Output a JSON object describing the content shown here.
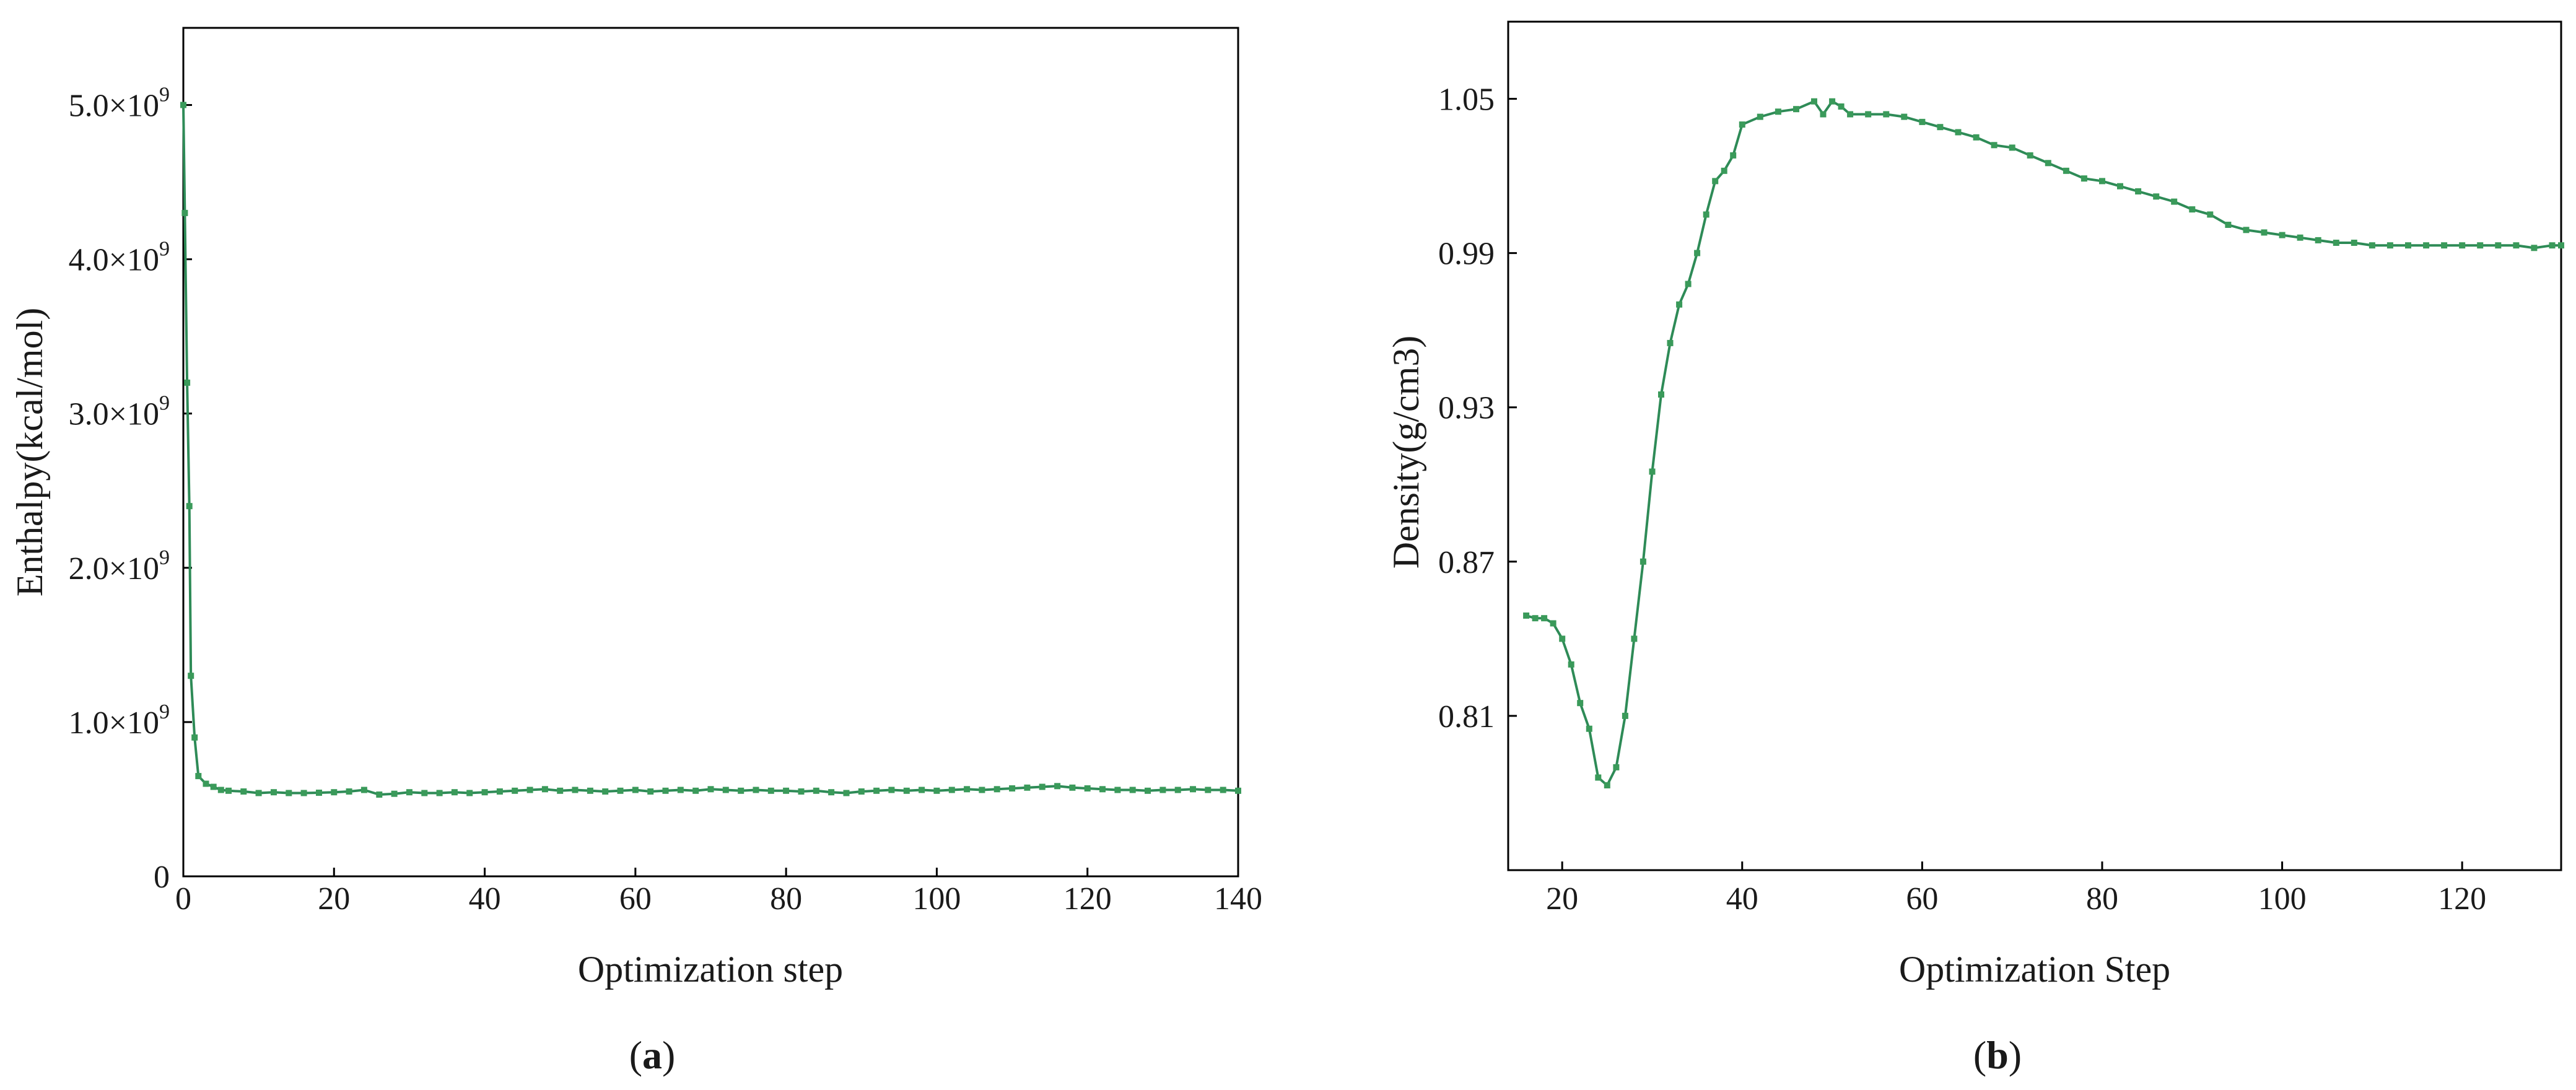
{
  "colors": {
    "series": "#2e8b57",
    "marker": "#3a9a5a",
    "frame": "#000000"
  },
  "chart_data": [
    {
      "type": "line",
      "panel": "(a)",
      "panel_letter": "a",
      "xlabel": "Optimization step",
      "ylabel": "Enthalpy(kcal/mol)",
      "xlim": [
        0,
        140
      ],
      "ylim": [
        0,
        5500000000
      ],
      "xticks": [
        0,
        20,
        40,
        60,
        80,
        100,
        120,
        140
      ],
      "xtick_labels": [
        "0",
        "20",
        "40",
        "60",
        "80",
        "100",
        "120",
        "140"
      ],
      "yticks": [
        0,
        1000000000,
        2000000000,
        3000000000,
        4000000000,
        5000000000
      ],
      "ytick_mantissas": [
        "0",
        "1.0×10",
        "2.0×10",
        "3.0×10",
        "4.0×10",
        "5.0×10"
      ],
      "ytick_exponents": [
        "",
        "9",
        "9",
        "9",
        "9",
        "9"
      ],
      "series": [
        {
          "x": [
            0,
            0.2,
            0.5,
            0.8,
            1,
            1.5,
            2,
            3,
            4,
            5,
            6,
            8,
            10,
            12,
            14,
            16,
            18,
            20,
            22,
            24,
            26,
            28,
            30,
            32,
            34,
            36,
            38,
            40,
            42,
            44,
            46,
            48,
            50,
            52,
            54,
            56,
            58,
            60,
            62,
            64,
            66,
            68,
            70,
            72,
            74,
            76,
            78,
            80,
            82,
            84,
            86,
            88,
            90,
            92,
            94,
            96,
            98,
            100,
            102,
            104,
            106,
            108,
            110,
            112,
            114,
            116,
            118,
            120,
            122,
            124,
            126,
            128,
            130,
            132,
            134,
            136,
            138,
            140
          ],
          "values": [
            5000000000,
            4300000000,
            3200000000,
            2400000000,
            1300000000,
            900000000,
            650000000,
            600000000,
            580000000,
            560000000,
            555000000,
            550000000,
            540000000,
            545000000,
            540000000,
            540000000,
            542000000,
            545000000,
            550000000,
            560000000,
            530000000,
            535000000,
            545000000,
            540000000,
            540000000,
            545000000,
            540000000,
            545000000,
            550000000,
            555000000,
            560000000,
            565000000,
            555000000,
            560000000,
            555000000,
            550000000,
            555000000,
            560000000,
            550000000,
            555000000,
            560000000,
            555000000,
            565000000,
            560000000,
            555000000,
            560000000,
            555000000,
            555000000,
            550000000,
            555000000,
            545000000,
            540000000,
            550000000,
            555000000,
            560000000,
            555000000,
            560000000,
            555000000,
            560000000,
            565000000,
            560000000,
            565000000,
            570000000,
            575000000,
            580000000,
            585000000,
            575000000,
            570000000,
            565000000,
            560000000,
            560000000,
            555000000,
            560000000,
            560000000,
            565000000,
            560000000,
            560000000,
            555000000
          ]
        }
      ]
    },
    {
      "type": "line",
      "panel": "(b)",
      "panel_letter": "b",
      "xlabel": "Optimization Step",
      "ylabel": "Density(g/cm3)",
      "xlim": [
        14,
        131
      ],
      "ylim": [
        0.75,
        1.08
      ],
      "xticks": [
        20,
        40,
        60,
        80,
        100,
        120
      ],
      "xtick_labels": [
        "20",
        "40",
        "60",
        "80",
        "100",
        "120"
      ],
      "yticks": [
        0.81,
        0.87,
        0.93,
        0.99,
        1.05
      ],
      "ytick_labels": [
        "0.81",
        "0.87",
        "0.93",
        "0.99",
        "1.05"
      ],
      "series": [
        {
          "x": [
            16,
            17,
            18,
            19,
            20,
            21,
            22,
            23,
            24,
            25,
            26,
            27,
            28,
            29,
            30,
            31,
            32,
            33,
            34,
            35,
            36,
            37,
            38,
            39,
            40,
            42,
            44,
            46,
            48,
            49,
            50,
            51,
            52,
            54,
            56,
            58,
            60,
            62,
            64,
            66,
            68,
            70,
            72,
            74,
            76,
            78,
            80,
            82,
            84,
            86,
            88,
            90,
            92,
            94,
            96,
            98,
            100,
            102,
            104,
            106,
            108,
            110,
            112,
            114,
            116,
            118,
            120,
            122,
            124,
            126,
            128,
            130,
            131
          ],
          "values": [
            0.849,
            0.848,
            0.848,
            0.846,
            0.84,
            0.83,
            0.815,
            0.805,
            0.786,
            0.783,
            0.79,
            0.81,
            0.84,
            0.87,
            0.905,
            0.935,
            0.955,
            0.97,
            0.978,
            0.99,
            1.005,
            1.018,
            1.022,
            1.028,
            1.04,
            1.043,
            1.045,
            1.046,
            1.049,
            1.044,
            1.049,
            1.047,
            1.044,
            1.044,
            1.044,
            1.043,
            1.041,
            1.039,
            1.037,
            1.035,
            1.032,
            1.031,
            1.028,
            1.025,
            1.022,
            1.019,
            1.018,
            1.016,
            1.014,
            1.012,
            1.01,
            1.007,
            1.005,
            1.001,
            0.999,
            0.998,
            0.997,
            0.996,
            0.995,
            0.994,
            0.994,
            0.993,
            0.993,
            0.993,
            0.993,
            0.993,
            0.993,
            0.993,
            0.993,
            0.993,
            0.992,
            0.993,
            0.993
          ]
        }
      ]
    }
  ]
}
